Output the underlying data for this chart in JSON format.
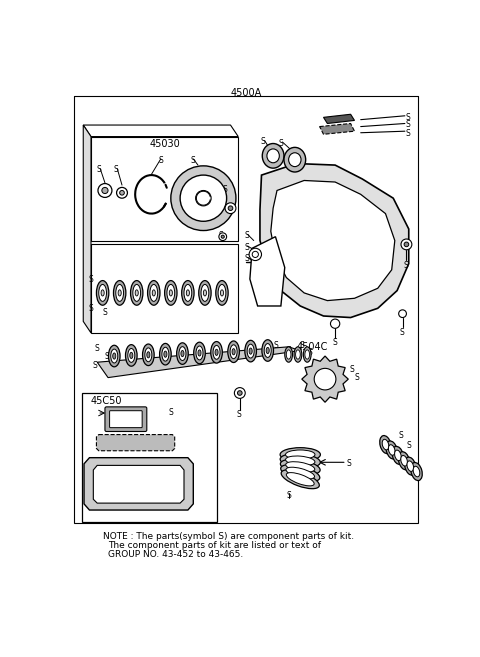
{
  "title": "4500A",
  "bg_color": "#ffffff",
  "note_line1": "NOTE : The parts(symbol S) are component parts of kit.",
  "note_line2": "The component parts of kit are listed or text of",
  "note_line3": "GROUP NO. 43-452 to 43-465.",
  "label_45030": "45030",
  "label_45040": "4504C",
  "label_45050": "45C50",
  "lc": "#000000",
  "tc": "#000000",
  "gray": "#888888",
  "lightgray": "#cccccc"
}
